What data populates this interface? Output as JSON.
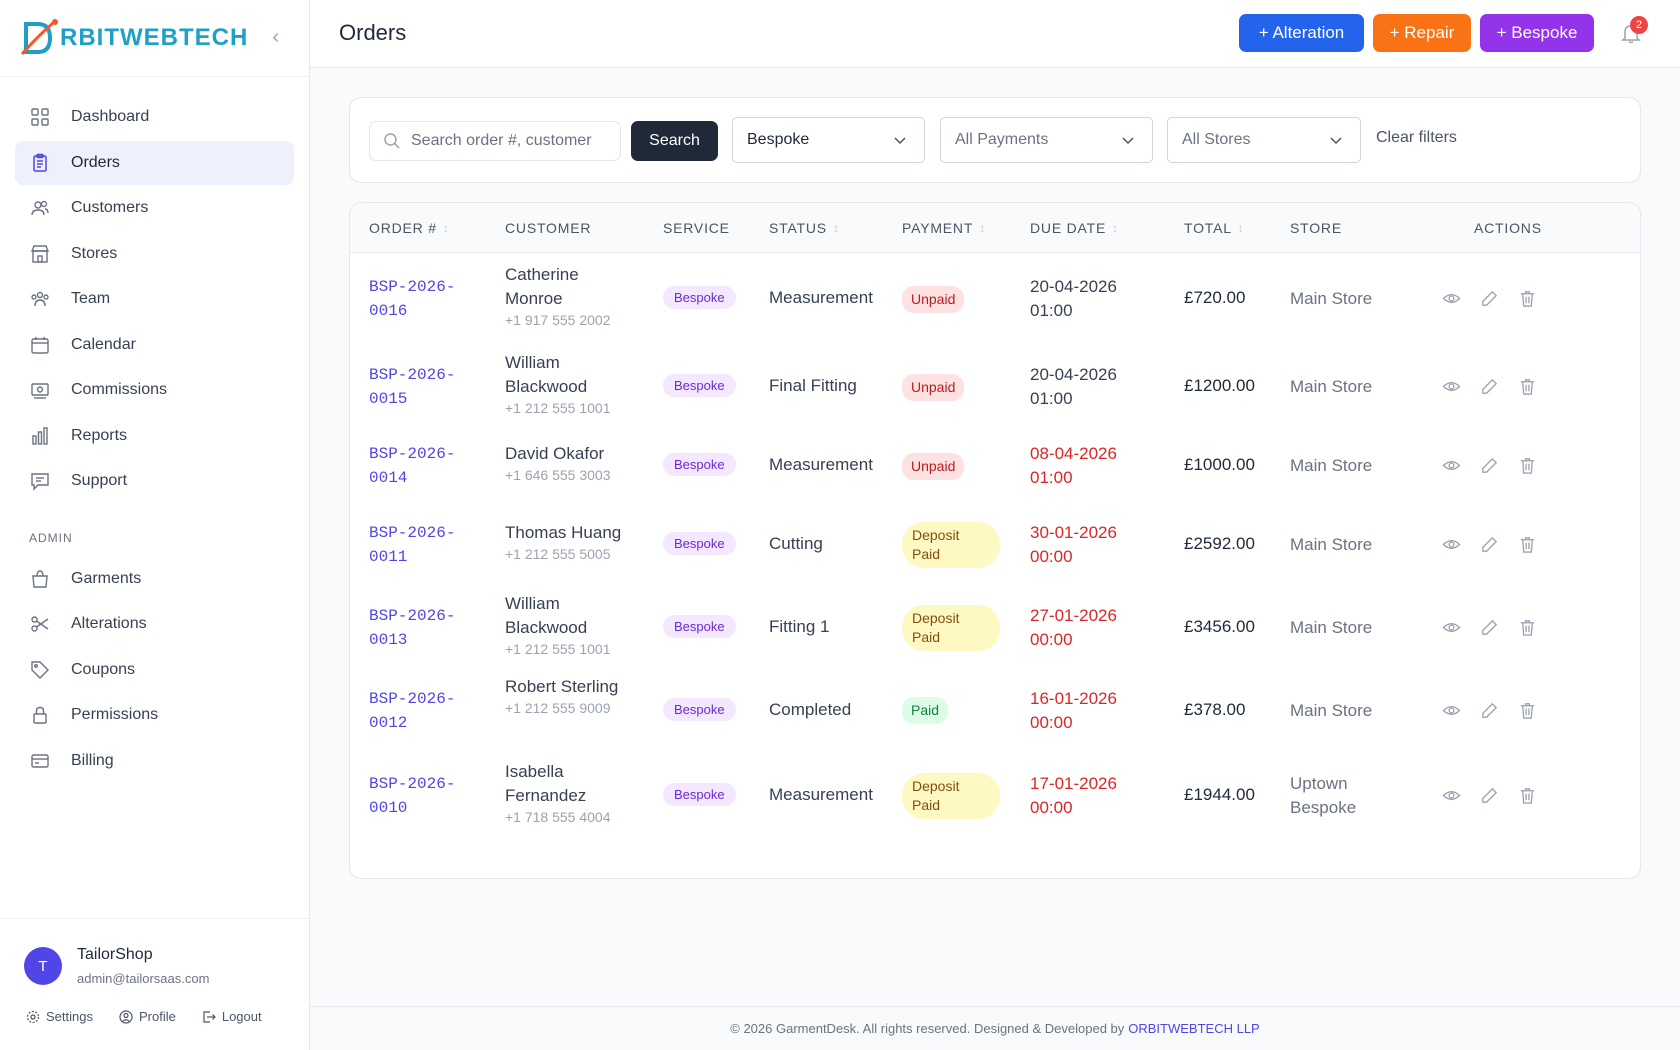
{
  "brand": {
    "logo_text": "RBITWEBTECH",
    "logo_letter": "O"
  },
  "sidebar": {
    "items": [
      {
        "label": "Dashboard",
        "icon": "dashboard-icon"
      },
      {
        "label": "Orders",
        "icon": "orders-icon",
        "active": true
      },
      {
        "label": "Customers",
        "icon": "customers-icon"
      },
      {
        "label": "Stores",
        "icon": "stores-icon"
      },
      {
        "label": "Team",
        "icon": "team-icon"
      },
      {
        "label": "Calendar",
        "icon": "calendar-icon"
      },
      {
        "label": "Commissions",
        "icon": "commissions-icon"
      },
      {
        "label": "Reports",
        "icon": "reports-icon"
      },
      {
        "label": "Support",
        "icon": "support-icon"
      }
    ],
    "admin_label": "ADMIN",
    "admin_items": [
      {
        "label": "Garments",
        "icon": "garments-icon"
      },
      {
        "label": "Alterations",
        "icon": "scissors-icon"
      },
      {
        "label": "Coupons",
        "icon": "tag-icon"
      },
      {
        "label": "Permissions",
        "icon": "lock-icon"
      },
      {
        "label": "Billing",
        "icon": "credit-card-icon"
      }
    ]
  },
  "user": {
    "initial": "T",
    "name": "TailorShop",
    "email": "admin@tailorsaas.com",
    "links": {
      "settings": "Settings",
      "profile": "Profile",
      "logout": "Logout"
    }
  },
  "header": {
    "title": "Orders",
    "buttons": {
      "alteration": "+ Alteration",
      "repair": "+ Repair",
      "bespoke": "+ Bespoke"
    },
    "notification_count": "2"
  },
  "filters": {
    "search_placeholder": "Search order #, customer",
    "search_button": "Search",
    "service_selected": "Bespoke",
    "payment_selected": "All Payments",
    "store_selected": "All Stores",
    "clear": "Clear filters"
  },
  "table": {
    "columns": {
      "order": "ORDER #",
      "customer": "CUSTOMER",
      "service": "SERVICE",
      "status": "STATUS",
      "payment": "PAYMENT",
      "due_date": "DUE DATE",
      "total": "TOTAL",
      "store": "STORE",
      "actions": "ACTIONS"
    },
    "rows": [
      {
        "order_line1": "BSP-2026-",
        "order_line2": "0016",
        "name": "Catherine Monroe",
        "phone": "+1 917 555 2002",
        "service": "Bespoke",
        "status": "Measurement",
        "payment": "Unpaid",
        "payment_type": "unpaid",
        "due_line1": "20-04-2026",
        "due_line2": "01:00",
        "overdue": false,
        "total": "£720.00",
        "store": "Main Store"
      },
      {
        "order_line1": "BSP-2026-",
        "order_line2": "0015",
        "name": "William Blackwood",
        "phone": "+1 212 555 1001",
        "service": "Bespoke",
        "status": "Final Fitting",
        "payment": "Unpaid",
        "payment_type": "unpaid",
        "due_line1": "20-04-2026",
        "due_line2": "01:00",
        "overdue": false,
        "total": "£1200.00",
        "store": "Main Store"
      },
      {
        "order_line1": "BSP-2026-",
        "order_line2": "0014",
        "name": "David Okafor",
        "phone": "+1 646 555 3003",
        "service": "Bespoke",
        "status": "Measurement",
        "payment": "Unpaid",
        "payment_type": "unpaid",
        "due_line1": "08-04-2026",
        "due_line2": "01:00",
        "overdue": true,
        "total": "£1000.00",
        "store": "Main Store"
      },
      {
        "order_line1": "BSP-2026-",
        "order_line2": "0011",
        "name": "Thomas Huang",
        "phone": "+1 212 555 5005",
        "service": "Bespoke",
        "status": "Cutting",
        "payment": "Deposit Paid",
        "payment_type": "deposit",
        "due_line1": "30-01-2026",
        "due_line2": "00:00",
        "overdue": true,
        "total": "£2592.00",
        "store": "Main Store"
      },
      {
        "order_line1": "BSP-2026-",
        "order_line2": "0013",
        "name": "William Blackwood",
        "phone": "+1 212 555 1001",
        "service": "Bespoke",
        "status": "Fitting 1",
        "payment": "Deposit Paid",
        "payment_type": "deposit",
        "due_line1": "27-01-2026",
        "due_line2": "00:00",
        "overdue": true,
        "total": "£3456.00",
        "store": "Main Store"
      },
      {
        "order_line1": "BSP-2026-",
        "order_line2": "0012",
        "name": "Robert Sterling",
        "phone": "+1 212 555 9009",
        "service": "Bespoke",
        "status": "Completed",
        "payment": "Paid",
        "payment_type": "paid",
        "due_line1": "16-01-2026",
        "due_line2": "00:00",
        "overdue": true,
        "total": "£378.00",
        "store": "Main Store"
      },
      {
        "order_line1": "BSP-2026-",
        "order_line2": "0010",
        "name": "Isabella Fernandez",
        "phone": "+1 718 555 4004",
        "service": "Bespoke",
        "status": "Measurement",
        "payment": "Deposit Paid",
        "payment_type": "deposit",
        "due_line1": "17-01-2026",
        "due_line2": "00:00",
        "overdue": true,
        "total": "£1944.00",
        "store": "Uptown Bespoke"
      }
    ]
  },
  "footer": {
    "text": "© 2026 GarmentDesk. All rights reserved. Designed & Developed by",
    "link": "ORBITWEBTECH LLP"
  },
  "colors": {
    "primary": "#4f46e5",
    "alteration_button": "#2463eb",
    "repair_button": "#f97316",
    "bespoke_button": "#9333ea",
    "overdue": "#dc2626"
  }
}
